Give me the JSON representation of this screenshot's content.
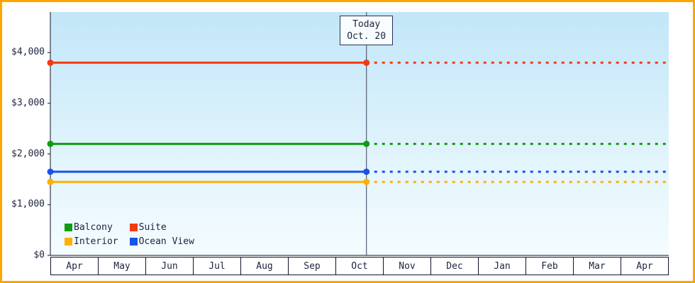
{
  "window": {
    "border_color": "#ffa500",
    "background": "#ffffff"
  },
  "chart_data": {
    "type": "line",
    "title": "",
    "xlabel": "",
    "ylabel": "",
    "ylim": [
      0,
      4800
    ],
    "grid": false,
    "legend_position": "bottom-left",
    "x_categories": [
      "Apr",
      "May",
      "Jun",
      "Jul",
      "Aug",
      "Sep",
      "Oct",
      "Nov",
      "Dec",
      "Jan",
      "Feb",
      "Mar",
      "Apr"
    ],
    "y_ticks": [
      {
        "value": 0,
        "label": "$0"
      },
      {
        "value": 1000,
        "label": "$1,000"
      },
      {
        "value": 2000,
        "label": "$2,000"
      },
      {
        "value": 3000,
        "label": "$3,000"
      },
      {
        "value": 4000,
        "label": "$4,000"
      }
    ],
    "today_marker": {
      "label_line1": "Today",
      "label_line2": "Oct. 20",
      "month": "Oct",
      "day": 20
    },
    "line_style_before_today": "solid",
    "line_style_after_today": "dotted",
    "series": [
      {
        "name": "Balcony",
        "value": 2200,
        "color": "#0f9d0f"
      },
      {
        "name": "Suite",
        "value": 3800,
        "color": "#f43a12"
      },
      {
        "name": "Interior",
        "value": 1450,
        "color": "#ffaf00"
      },
      {
        "name": "Ocean View",
        "value": 1650,
        "color": "#1653e6"
      }
    ],
    "plot_background_gradient": [
      "#c2e6f8",
      "#f4fcff"
    ]
  }
}
